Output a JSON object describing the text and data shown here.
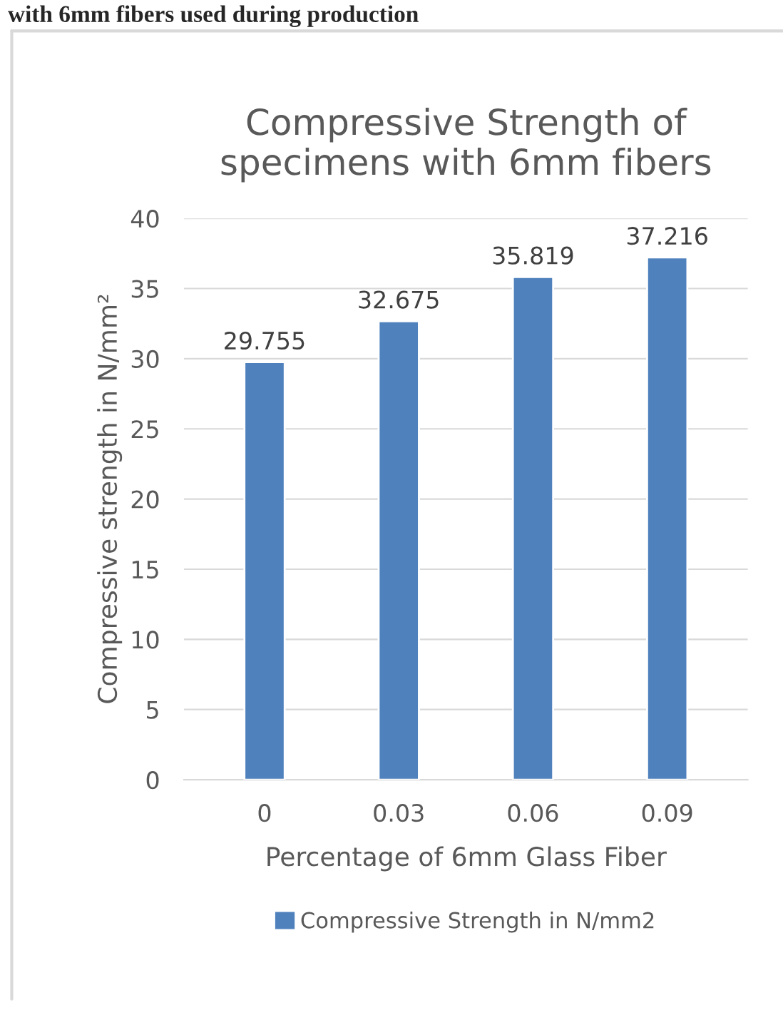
{
  "chart_data": {
    "type": "bar",
    "title": "Compressive Strength of\nspecimens with 6mm fibers",
    "xlabel": "Percentage of 6mm Glass Fiber",
    "ylabel": "Compressive strength in N/mm²",
    "annotations": [
      "with 6mm fibers used during production"
    ],
    "categories": [
      "0",
      "0.03",
      "0.06",
      "0.09"
    ],
    "series": [
      {
        "name": "Compressive Strength in N/mm2",
        "color": "#4f81bd",
        "values": [
          29.755,
          32.675,
          35.819,
          37.216
        ]
      }
    ],
    "ylim": [
      0,
      40
    ],
    "yticks": [
      0,
      5,
      10,
      15,
      20,
      25,
      30,
      35,
      40
    ],
    "grid": "y",
    "legend": "bottom",
    "data_labels": true
  }
}
